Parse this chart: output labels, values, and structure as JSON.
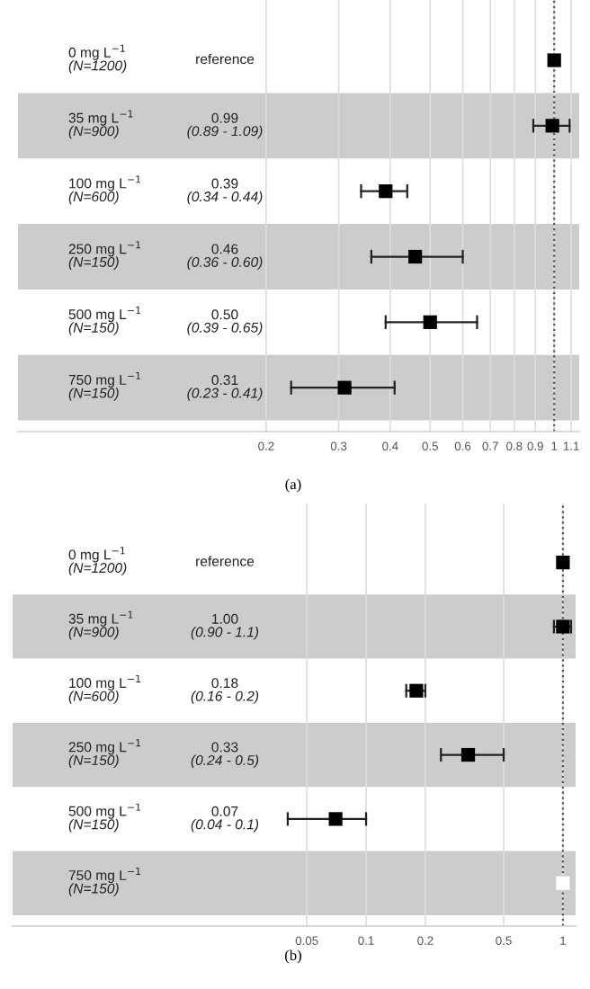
{
  "chart_data": [
    {
      "type": "scatter",
      "orientation": "horizontal",
      "log": "x",
      "marker": "square",
      "grid": "x",
      "categories": [
        "0 mg L$^{−1}$\n(N=1200)",
        "35 mg L$^{−1}$\n(N=900)",
        "100 mg L$^{−1}$\n(N=600)",
        "250 mg L$^{−1}$\n(N=150)",
        "500 mg L$^{−1}$\n(N=150)",
        "750 mg L$^{−1}$\n(N=150)"
      ],
      "values": [
        1,
        0.99,
        0.39,
        0.46,
        0.5,
        0.31
      ],
      "errors": [
        null,
        [
          0.89,
          1.09
        ],
        [
          0.34,
          0.44
        ],
        [
          0.36,
          0.6
        ],
        [
          0.39,
          0.65
        ],
        [
          0.23,
          0.41
        ]
      ],
      "colors": [
        "#000000",
        "#000000",
        "#000000",
        "#000000",
        "#000000",
        "#000000"
      ],
      "xlim": [
        0.05,
        1.15
      ],
      "xticks": [
        0.2,
        0.3,
        0.4,
        0.5,
        0.6,
        0.7,
        0.8,
        0.9,
        1,
        1.1
      ],
      "ref_lines": [
        {
          "axis": "x",
          "value": 1,
          "line_style": "dotted",
          "color": "#555555"
        }
      ],
      "annotations": [
        "reference",
        "0.99\n(0.89 - 1.09)",
        "0.39\n(0.34 - 0.44)",
        "0.46\n(0.36 - 0.60)",
        "0.50\n(0.39 - 0.65)",
        "0.31\n(0.23 - 0.41)",
        "(a)"
      ]
    },
    {
      "type": "scatter",
      "orientation": "horizontal",
      "log": "x",
      "marker": "square",
      "grid": "x",
      "categories": [
        "0 mg L$^{−1}$\n(N=1200)",
        "35 mg L$^{−1}$\n(N=900)",
        "100 mg L$^{−1}$\n(N=600)",
        "250 mg L$^{−1}$\n(N=150)",
        "500 mg L$^{−1}$\n(N=150)",
        "750 mg L$^{−1}$\n(N=150)"
      ],
      "values": [
        1,
        1.0,
        0.18,
        0.33,
        0.07,
        1
      ],
      "errors": [
        null,
        [
          0.9,
          1.1
        ],
        [
          0.16,
          0.2
        ],
        [
          0.24,
          0.5
        ],
        [
          0.04,
          0.1
        ],
        null
      ],
      "colors": [
        "#000000",
        "#000000",
        "#000000",
        "#000000",
        "#000000",
        "#ffffff"
      ],
      "xlim": [
        0.0016,
        1.16
      ],
      "xticks": [
        0.05,
        0.1,
        0.2,
        0.5,
        1
      ],
      "ref_lines": [
        {
          "axis": "x",
          "value": 1,
          "line_style": "dotted",
          "color": "#555555"
        }
      ],
      "annotations": [
        "reference",
        "1.00\n(0.90 - 1.1)",
        "0.18\n(0.16 - 0.2)",
        "0.33\n(0.24 - 0.5)",
        "0.07\n(0.04 - 0.1)",
        "(b)"
      ]
    }
  ]
}
